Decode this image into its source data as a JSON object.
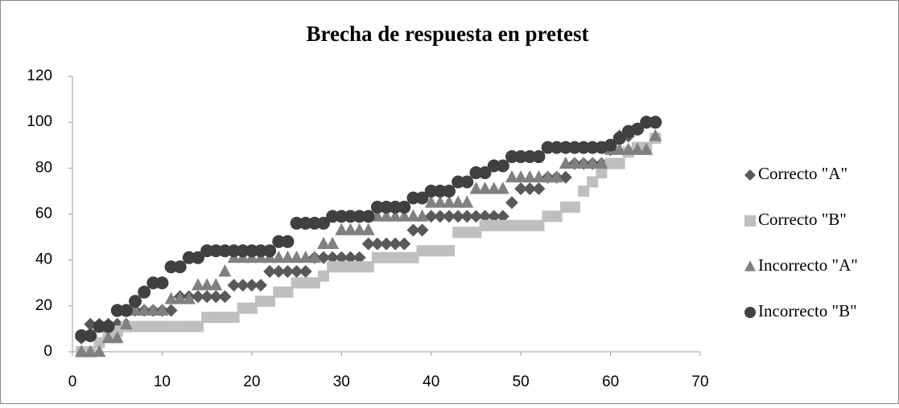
{
  "chart_data": {
    "type": "scatter",
    "title": "Brecha de respuesta en pretest",
    "x": [
      1,
      2,
      3,
      4,
      5,
      6,
      7,
      8,
      9,
      10,
      11,
      12,
      13,
      14,
      15,
      16,
      17,
      18,
      19,
      20,
      21,
      22,
      23,
      24,
      25,
      26,
      27,
      28,
      29,
      30,
      31,
      32,
      33,
      34,
      35,
      36,
      37,
      38,
      39,
      40,
      41,
      42,
      43,
      44,
      45,
      46,
      47,
      48,
      49,
      50,
      51,
      52,
      53,
      54,
      55,
      56,
      57,
      58,
      59,
      60,
      61,
      62,
      63,
      64,
      65
    ],
    "series": [
      {
        "name": "Correcto \"A\"",
        "color": "#595959",
        "marker": "diamond",
        "values": [
          6,
          12,
          12,
          12,
          12,
          12,
          18,
          18,
          18,
          18,
          18,
          24,
          24,
          24,
          24,
          24,
          24,
          29,
          29,
          29,
          29,
          35,
          35,
          35,
          35,
          35,
          41,
          41,
          41,
          41,
          41,
          41,
          47,
          47,
          47,
          47,
          47,
          53,
          53,
          59,
          59,
          59,
          59,
          59,
          59,
          59,
          59,
          59,
          65,
          71,
          71,
          71,
          76,
          76,
          76,
          82,
          82,
          82,
          82,
          88,
          94,
          94,
          97,
          100,
          100
        ]
      },
      {
        "name": "Correcto \"B\"",
        "color": "#bfbfbf",
        "marker": "square",
        "values": [
          0,
          0,
          4,
          7,
          9,
          11,
          11,
          11,
          11,
          11,
          11,
          11,
          11,
          11,
          15,
          15,
          15,
          15,
          19,
          19,
          22,
          22,
          26,
          26,
          30,
          30,
          30,
          33,
          37,
          37,
          37,
          37,
          37,
          41,
          41,
          41,
          41,
          41,
          44,
          44,
          44,
          44,
          52,
          52,
          52,
          55,
          55,
          55,
          55,
          55,
          55,
          55,
          59,
          59,
          63,
          63,
          70,
          74,
          78,
          82,
          82,
          87,
          89,
          89,
          93
        ]
      },
      {
        "name": "Incorrecto \"A\"",
        "color": "#808080",
        "marker": "triangle",
        "values": [
          0,
          0,
          0,
          6,
          6,
          12,
          18,
          18,
          18,
          18,
          23,
          23,
          23,
          29,
          29,
          29,
          35,
          41,
          41,
          41,
          41,
          41,
          41,
          41,
          41,
          41,
          41,
          47,
          47,
          53,
          53,
          53,
          53,
          59,
          59,
          59,
          59,
          59,
          59,
          65,
          65,
          65,
          65,
          65,
          71,
          71,
          71,
          71,
          76,
          76,
          76,
          76,
          76,
          76,
          82,
          82,
          82,
          82,
          82,
          88,
          88,
          88,
          88,
          88,
          94
        ]
      },
      {
        "name": "Incorrecto \"B\"",
        "color": "#404040",
        "marker": "circle",
        "values": [
          7,
          7,
          11,
          11,
          18,
          18,
          22,
          26,
          30,
          30,
          37,
          37,
          41,
          41,
          44,
          44,
          44,
          44,
          44,
          44,
          44,
          44,
          48,
          48,
          56,
          56,
          56,
          56,
          59,
          59,
          59,
          59,
          59,
          63,
          63,
          63,
          63,
          67,
          67,
          70,
          70,
          70,
          74,
          74,
          78,
          78,
          81,
          81,
          85,
          85,
          85,
          85,
          89,
          89,
          89,
          89,
          89,
          89,
          89,
          90,
          93,
          96,
          97,
          100,
          100
        ]
      }
    ],
    "xlim": [
      0,
      70
    ],
    "xticks": [
      0,
      10,
      20,
      30,
      40,
      50,
      60,
      70
    ],
    "ylim": [
      0,
      120
    ],
    "yticks": [
      0,
      20,
      40,
      60,
      80,
      100,
      120
    ]
  }
}
